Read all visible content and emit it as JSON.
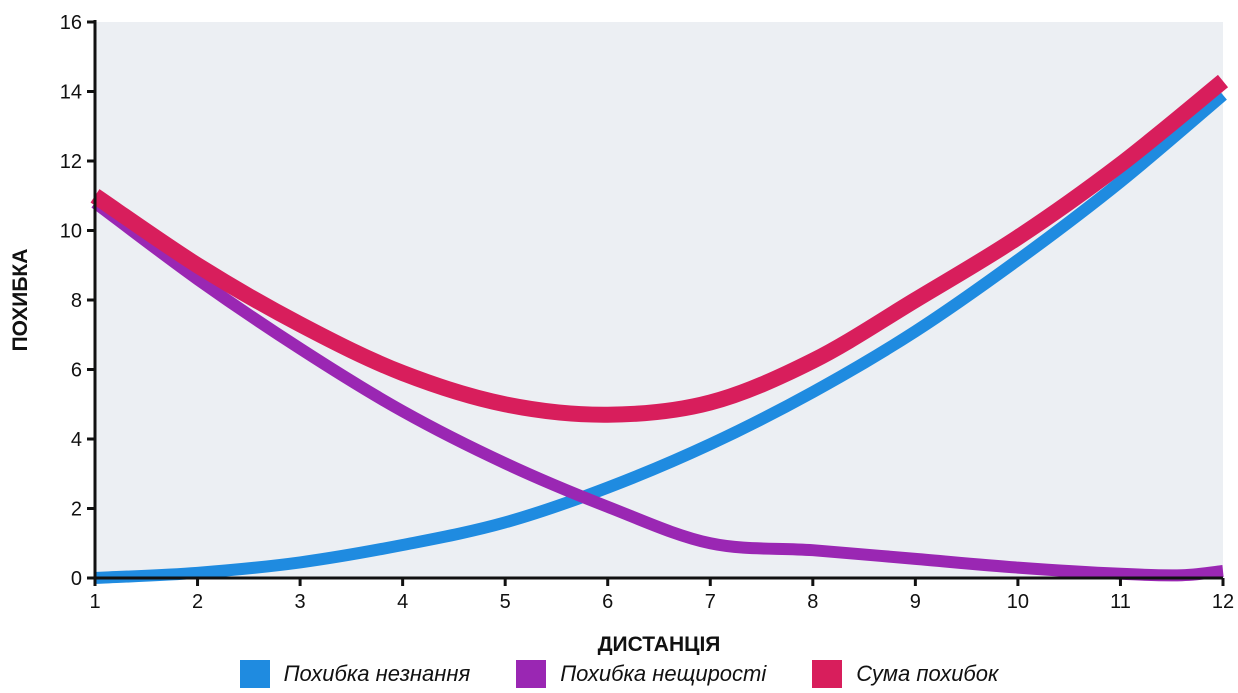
{
  "chart_data": {
    "type": "line",
    "xlabel": "ДИСТАНЦІЯ",
    "ylabel": "ПОХИБКА",
    "xlim": [
      1,
      12
    ],
    "ylim": [
      0,
      16
    ],
    "x_ticks": [
      1,
      2,
      3,
      4,
      5,
      6,
      7,
      8,
      9,
      10,
      11,
      12
    ],
    "y_ticks": [
      0,
      2,
      4,
      6,
      8,
      10,
      12,
      14,
      16
    ],
    "grid": false,
    "background": "#eceff3",
    "legend_position": "bottom",
    "series": [
      {
        "name": "Похибка незнання",
        "color": "#1f8be0",
        "x": [
          1,
          2,
          3,
          4,
          5,
          6,
          7,
          8,
          9,
          10,
          11,
          12
        ],
        "y": [
          0.0,
          0.15,
          0.45,
          0.95,
          1.6,
          2.6,
          3.85,
          5.35,
          7.1,
          9.15,
          11.4,
          13.9
        ]
      },
      {
        "name": "Похибка нещирості",
        "color": "#9a27b3",
        "x": [
          1,
          2,
          3,
          4,
          5,
          6,
          7,
          8,
          9,
          10,
          11,
          11.6,
          12
        ],
        "y": [
          10.8,
          8.6,
          6.6,
          4.8,
          3.3,
          2.05,
          1.0,
          0.8,
          0.55,
          0.3,
          0.12,
          0.08,
          0.2
        ]
      },
      {
        "name": "Сума похибок",
        "color": "#d81e5c",
        "x": [
          1,
          2,
          3,
          4,
          5,
          6,
          7,
          8,
          9,
          10,
          11,
          12
        ],
        "y": [
          11.0,
          9.0,
          7.3,
          5.9,
          5.0,
          4.7,
          5.05,
          6.25,
          8.0,
          9.8,
          11.9,
          14.3
        ]
      }
    ]
  }
}
